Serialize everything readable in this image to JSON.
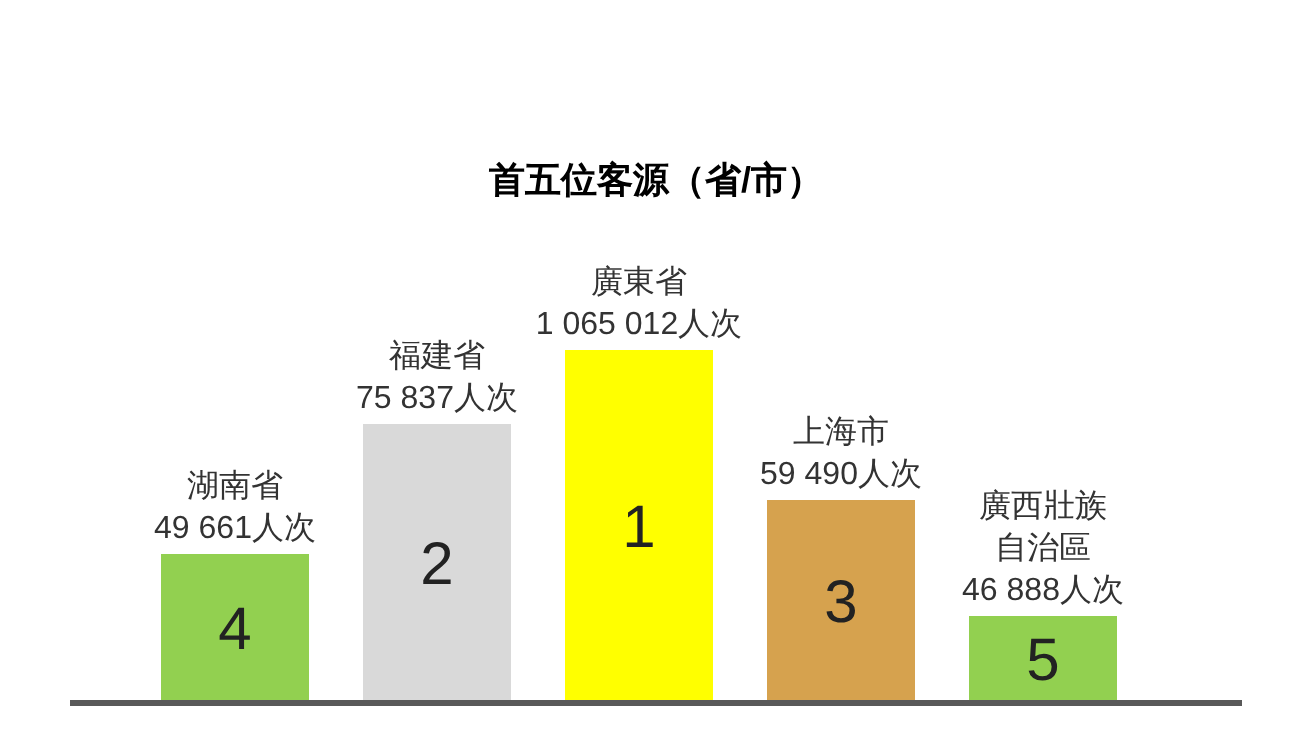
{
  "chart_data": {
    "type": "other",
    "title": "首五位客源（省/市）",
    "categories": [
      "湖南省",
      "福建省",
      "廣東省",
      "上海市",
      "廣西壯族自治區"
    ],
    "values": [
      49661,
      75837,
      1065012,
      59490,
      46888
    ],
    "value_labels": [
      "49 661人次",
      "75 837人次",
      "1 065 012人次",
      "59 490人次",
      "46 888人次"
    ],
    "colors": [
      "#92d050",
      "#d9d9d9",
      "#ffff00",
      "#d6a24e",
      "#92d050"
    ],
    "annotations": [
      "4",
      "2",
      "1",
      "3",
      "5"
    ]
  }
}
